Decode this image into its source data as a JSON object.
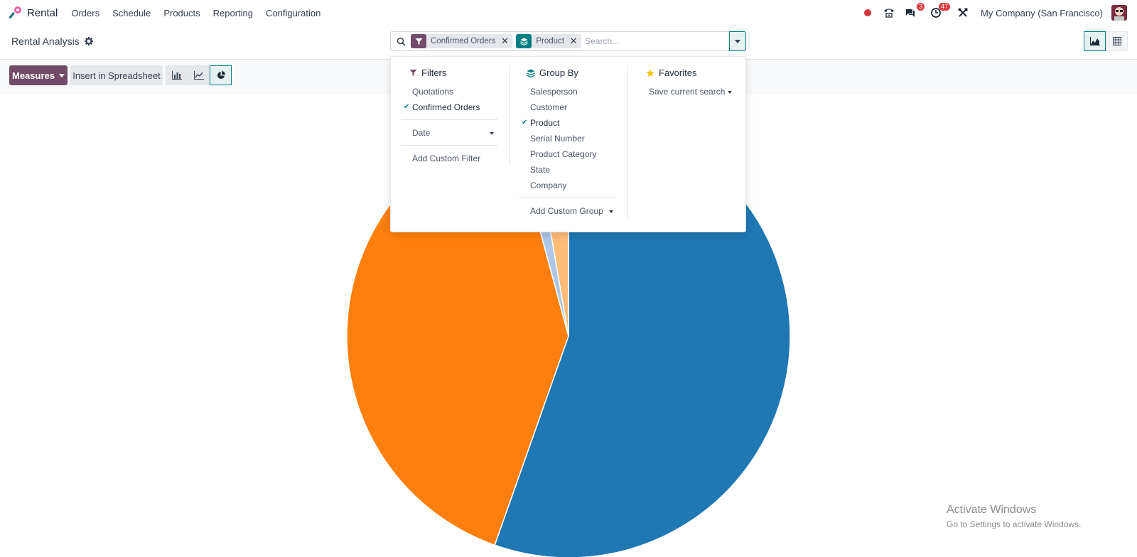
{
  "navbar": {
    "app_name": "Rental",
    "menu": [
      "Orders",
      "Schedule",
      "Products",
      "Reporting",
      "Configuration"
    ],
    "messages_count": "3",
    "activities_count": "47",
    "company": "My Company (San Francisco)"
  },
  "control": {
    "title": "Rental Analysis",
    "facets": [
      {
        "label": "Confirmed Orders",
        "type": "filter",
        "color": "#714b67"
      },
      {
        "label": "Product",
        "type": "groupby",
        "color": "#017e84"
      }
    ],
    "search_placeholder": "Search..."
  },
  "toolbar": {
    "measures_label": "Measures",
    "insert_label": "Insert in Spreadsheet",
    "chart_types": [
      "bar-chart-icon",
      "line-chart-icon",
      "pie-chart-icon"
    ],
    "active_chart_type": "pie"
  },
  "search_panel": {
    "filters": {
      "title": "Filters",
      "items": [
        {
          "label": "Quotations",
          "checked": false
        },
        {
          "label": "Confirmed Orders",
          "checked": true
        }
      ],
      "date_label": "Date",
      "custom_label": "Add Custom Filter"
    },
    "group_by": {
      "title": "Group By",
      "items": [
        {
          "label": "Salesperson",
          "checked": false
        },
        {
          "label": "Customer",
          "checked": false
        },
        {
          "label": "Product",
          "checked": true
        },
        {
          "label": "Serial Number",
          "checked": false
        },
        {
          "label": "Product Category",
          "checked": false
        },
        {
          "label": "State",
          "checked": false
        },
        {
          "label": "Company",
          "checked": false
        }
      ],
      "custom_label": "Add Custom Group"
    },
    "favorites": {
      "title": "Favorites",
      "save_label": "Save current search"
    }
  },
  "chart_data": {
    "type": "pie",
    "slices": [
      {
        "value": 55.4,
        "color": "#1f77b4"
      },
      {
        "value": 40.4,
        "color": "#ff7f0e"
      },
      {
        "value": 1.5,
        "color": "#aec7e8"
      },
      {
        "value": 2.7,
        "color": "#ffbb78"
      }
    ]
  },
  "watermark": {
    "title": "Activate Windows",
    "subtitle": "Go to Settings to activate Windows."
  }
}
